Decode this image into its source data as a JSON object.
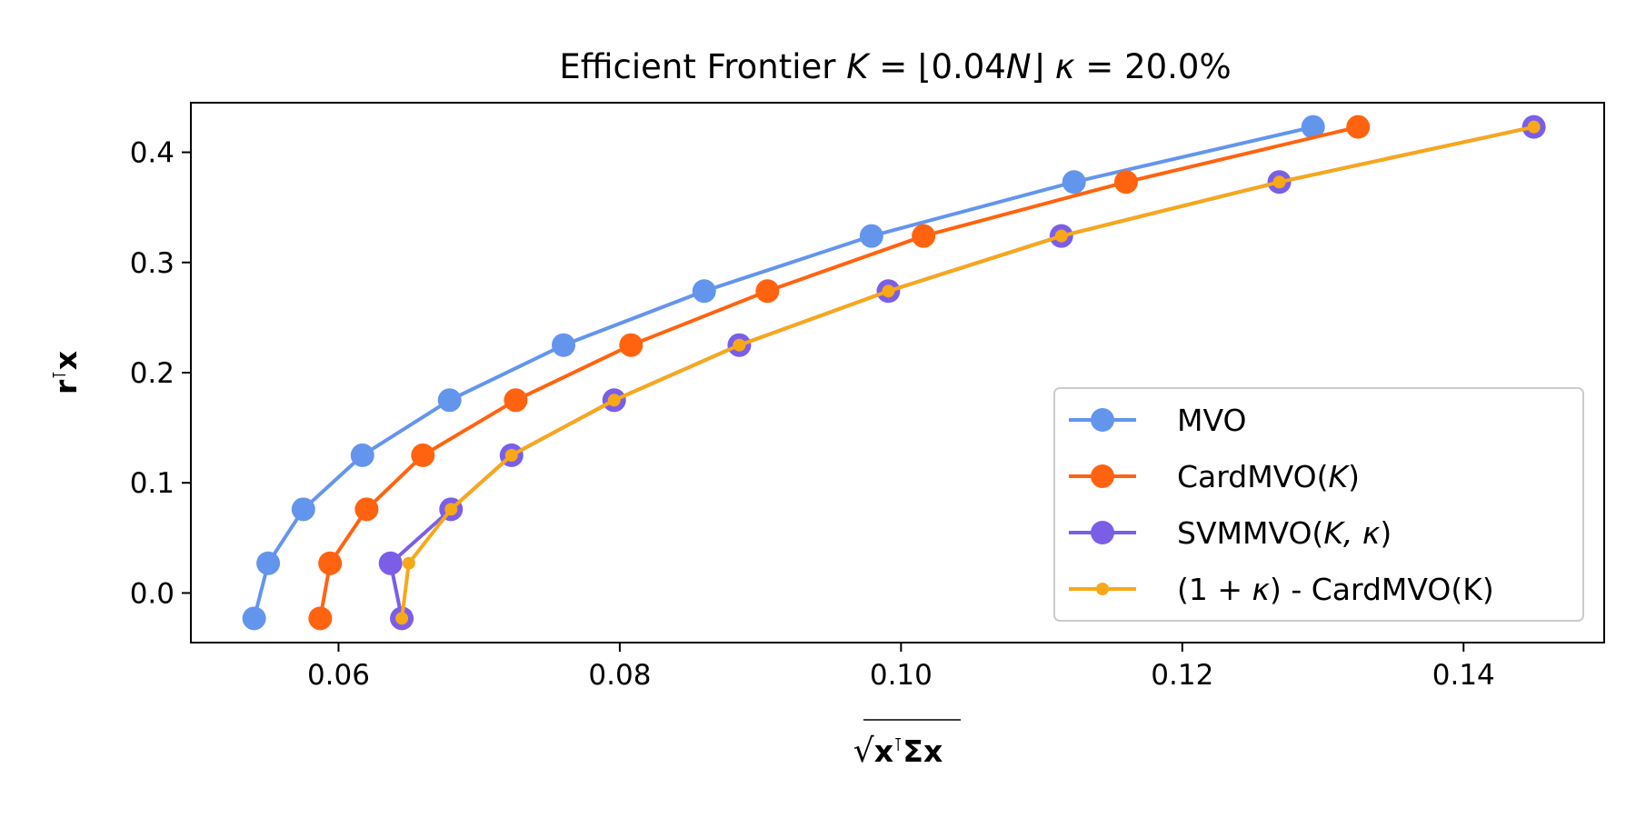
{
  "chart_data": {
    "type": "line",
    "title_parts": {
      "prefix": "Efficient Frontier ",
      "k_symbol": "K",
      "k_expr_pre": " = ⌊0.04",
      "n_symbol": "N",
      "k_expr_post": "⌋  ",
      "kappa_symbol": "κ",
      "kappa_expr": " = 20.0%"
    },
    "xlabel": "√xᵀΣx",
    "ylabel_parts": {
      "r": "r",
      "t": "⊺",
      "x": "x"
    },
    "xlabel_parts": {
      "sqrt": "√",
      "x1": "x",
      "t": "⊺",
      "sigma": "Σ",
      "x2": "x"
    },
    "xlim": [
      0.0495,
      0.15
    ],
    "ylim": [
      -0.045,
      0.445
    ],
    "xticks": [
      0.06,
      0.08,
      0.1,
      0.12,
      0.14
    ],
    "xtick_labels": [
      "0.06",
      "0.08",
      "0.10",
      "0.12",
      "0.14"
    ],
    "yticks": [
      0.0,
      0.1,
      0.2,
      0.3,
      0.4
    ],
    "ytick_labels": [
      "0.0",
      "0.1",
      "0.2",
      "0.3",
      "0.4"
    ],
    "grid": false,
    "legend_position": "lower-right",
    "series": [
      {
        "name": "MVO",
        "color": "#6495ed",
        "marker": "large",
        "points": [
          [
            0.054,
            -0.023
          ],
          [
            0.055,
            0.027
          ],
          [
            0.0575,
            0.076
          ],
          [
            0.0617,
            0.125
          ],
          [
            0.0679,
            0.175
          ],
          [
            0.076,
            0.225
          ],
          [
            0.086,
            0.274
          ],
          [
            0.0979,
            0.324
          ],
          [
            0.1123,
            0.373
          ],
          [
            0.1293,
            0.423
          ]
        ]
      },
      {
        "name": "CardMVO(K)",
        "color": "#ff6310",
        "marker": "large",
        "points": [
          [
            0.0587,
            -0.023
          ],
          [
            0.0594,
            0.027
          ],
          [
            0.062,
            0.076
          ],
          [
            0.066,
            0.125
          ],
          [
            0.0726,
            0.175
          ],
          [
            0.0808,
            0.225
          ],
          [
            0.0905,
            0.274
          ],
          [
            0.1016,
            0.324
          ],
          [
            0.116,
            0.373
          ],
          [
            0.1325,
            0.423
          ]
        ]
      },
      {
        "name": "SVMMVO(K, κ)",
        "color": "#7b5ee8",
        "marker": "large",
        "points": [
          [
            0.0645,
            -0.023
          ],
          [
            0.0637,
            0.027
          ],
          [
            0.068,
            0.076
          ],
          [
            0.0723,
            0.125
          ],
          [
            0.0796,
            0.175
          ],
          [
            0.0885,
            0.225
          ],
          [
            0.0991,
            0.274
          ],
          [
            0.1114,
            0.324
          ],
          [
            0.1269,
            0.373
          ],
          [
            0.145,
            0.423
          ]
        ]
      },
      {
        "name": "(1 + κ) - CardMVO(K)",
        "color": "#f8a817",
        "marker": "small",
        "points": [
          [
            0.0645,
            -0.023
          ],
          [
            0.065,
            0.027
          ],
          [
            0.068,
            0.076
          ],
          [
            0.0723,
            0.125
          ],
          [
            0.0796,
            0.175
          ],
          [
            0.0885,
            0.225
          ],
          [
            0.0991,
            0.274
          ],
          [
            0.1114,
            0.324
          ],
          [
            0.1269,
            0.373
          ],
          [
            0.145,
            0.423
          ]
        ]
      }
    ],
    "legend": [
      {
        "label_pre": "MVO",
        "label_italic": "",
        "label_post": ""
      },
      {
        "label_pre": "CardMVO(",
        "label_italic": "K",
        "label_post": ")"
      },
      {
        "label_pre": "SVMMVO(",
        "label_italic": "K, κ",
        "label_post": ")"
      },
      {
        "label_pre": "(1 + ",
        "label_italic": "κ",
        "label_post": ") - CardMVO(K)"
      }
    ]
  }
}
